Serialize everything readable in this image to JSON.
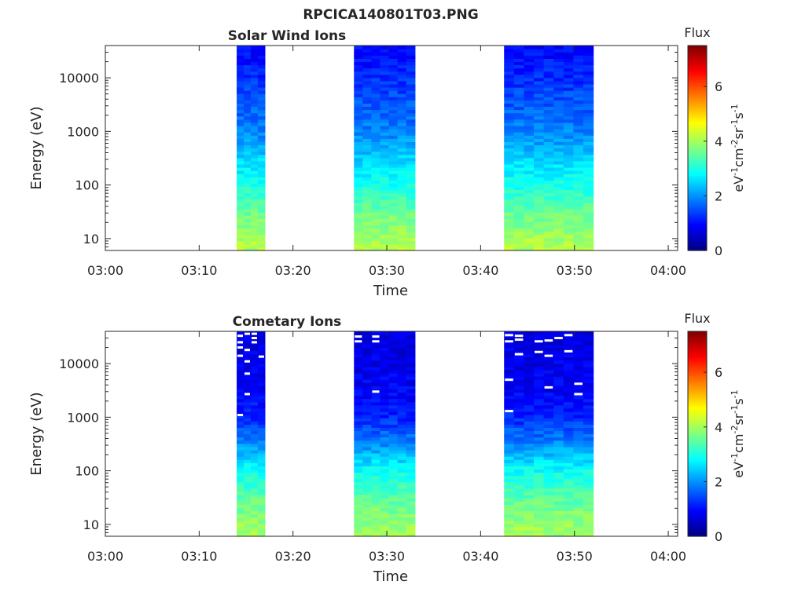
{
  "figure": {
    "title": "RPCICA140801T03.PNG"
  },
  "chart_data": [
    {
      "type": "heatmap",
      "title": "Solar Wind Ions",
      "xlabel": "Time",
      "ylabel": "Energy (eV)",
      "x_tick_labels": [
        "03:00",
        "03:10",
        "03:20",
        "03:30",
        "03:40",
        "03:50",
        "04:00"
      ],
      "xlim": [
        "03:00",
        "04:01"
      ],
      "y_scale": "log",
      "y_tick_labels": [
        "10",
        "100",
        "1000",
        "10000"
      ],
      "ylim": [
        6,
        40000
      ],
      "colorbar": {
        "title": "Flux",
        "tick_labels": [
          "0",
          "2",
          "4",
          "6"
        ],
        "range": [
          0,
          7.5
        ],
        "colormap": "jet"
      },
      "data_intervals": [
        {
          "start": "03:14",
          "end": "03:17",
          "columns": 4
        },
        {
          "start": "03:26.5",
          "end": "03:33",
          "columns": 7
        },
        {
          "start": "03:42.5",
          "end": "03:52",
          "columns": 9
        }
      ],
      "flux_profile": {
        "energy_eV": [
          8,
          30,
          100,
          300,
          1000,
          3000,
          10000,
          30000
        ],
        "flux": [
          4.1,
          3.6,
          3.0,
          2.5,
          1.9,
          1.6,
          1.25,
          1.0
        ]
      },
      "gaps": []
    },
    {
      "type": "heatmap",
      "title": "Cometary Ions",
      "xlabel": "Time",
      "ylabel": "Energy (eV)",
      "x_tick_labels": [
        "03:00",
        "03:10",
        "03:20",
        "03:30",
        "03:40",
        "03:50",
        "04:00"
      ],
      "xlim": [
        "03:00",
        "04:01"
      ],
      "y_scale": "log",
      "y_tick_labels": [
        "10",
        "100",
        "1000",
        "10000"
      ],
      "ylim": [
        6,
        40000
      ],
      "colorbar": {
        "title": "Flux",
        "tick_labels": [
          "0",
          "2",
          "4",
          "6"
        ],
        "range": [
          0,
          7.5
        ],
        "colormap": "jet"
      },
      "data_intervals": [
        {
          "start": "03:14",
          "end": "03:17",
          "columns": 4
        },
        {
          "start": "03:26.5",
          "end": "03:33",
          "columns": 7
        },
        {
          "start": "03:42.5",
          "end": "03:52",
          "columns": 9
        }
      ],
      "flux_profile": {
        "energy_eV": [
          8,
          30,
          100,
          300,
          1000,
          3000,
          10000,
          30000
        ],
        "flux": [
          4.0,
          3.5,
          2.9,
          2.0,
          1.2,
          0.9,
          0.8,
          0.7
        ]
      },
      "gaps": [
        {
          "interval": 0,
          "column": 0,
          "energy_eV": 33000
        },
        {
          "interval": 0,
          "column": 1,
          "energy_eV": 36000
        },
        {
          "interval": 0,
          "column": 2,
          "energy_eV": 36000
        },
        {
          "interval": 0,
          "column": 2,
          "energy_eV": 30000
        },
        {
          "interval": 0,
          "column": 0,
          "energy_eV": 25000
        },
        {
          "interval": 0,
          "column": 2,
          "energy_eV": 25000
        },
        {
          "interval": 0,
          "column": 0,
          "energy_eV": 20000
        },
        {
          "interval": 0,
          "column": 1,
          "energy_eV": 18000
        },
        {
          "interval": 0,
          "column": 0,
          "energy_eV": 14000
        },
        {
          "interval": 0,
          "column": 1,
          "energy_eV": 11000
        },
        {
          "interval": 0,
          "column": 3,
          "energy_eV": 13500
        },
        {
          "interval": 0,
          "column": 1,
          "energy_eV": 6500
        },
        {
          "interval": 0,
          "column": 1,
          "energy_eV": 2700
        },
        {
          "interval": 0,
          "column": 0,
          "energy_eV": 1100
        },
        {
          "interval": 1,
          "column": 0,
          "energy_eV": 32000
        },
        {
          "interval": 1,
          "column": 0,
          "energy_eV": 26000
        },
        {
          "interval": 1,
          "column": 2,
          "energy_eV": 32000
        },
        {
          "interval": 1,
          "column": 2,
          "energy_eV": 26000
        },
        {
          "interval": 1,
          "column": 2,
          "energy_eV": 3000
        },
        {
          "interval": 2,
          "column": 0,
          "energy_eV": 34000
        },
        {
          "interval": 2,
          "column": 1,
          "energy_eV": 33000
        },
        {
          "interval": 2,
          "column": 1,
          "energy_eV": 28000
        },
        {
          "interval": 2,
          "column": 0,
          "energy_eV": 26000
        },
        {
          "interval": 2,
          "column": 3,
          "energy_eV": 26000
        },
        {
          "interval": 2,
          "column": 4,
          "energy_eV": 27000
        },
        {
          "interval": 2,
          "column": 1,
          "energy_eV": 15000
        },
        {
          "interval": 2,
          "column": 3,
          "energy_eV": 16500
        },
        {
          "interval": 2,
          "column": 4,
          "energy_eV": 14000
        },
        {
          "interval": 2,
          "column": 6,
          "energy_eV": 17000
        },
        {
          "interval": 2,
          "column": 6,
          "energy_eV": 34000
        },
        {
          "interval": 2,
          "column": 5,
          "energy_eV": 30000
        },
        {
          "interval": 2,
          "column": 0,
          "energy_eV": 5000
        },
        {
          "interval": 2,
          "column": 7,
          "energy_eV": 4200
        },
        {
          "interval": 2,
          "column": 7,
          "energy_eV": 2700
        },
        {
          "interval": 2,
          "column": 0,
          "energy_eV": 1300
        },
        {
          "interval": 2,
          "column": 4,
          "energy_eV": 3600
        }
      ]
    }
  ]
}
